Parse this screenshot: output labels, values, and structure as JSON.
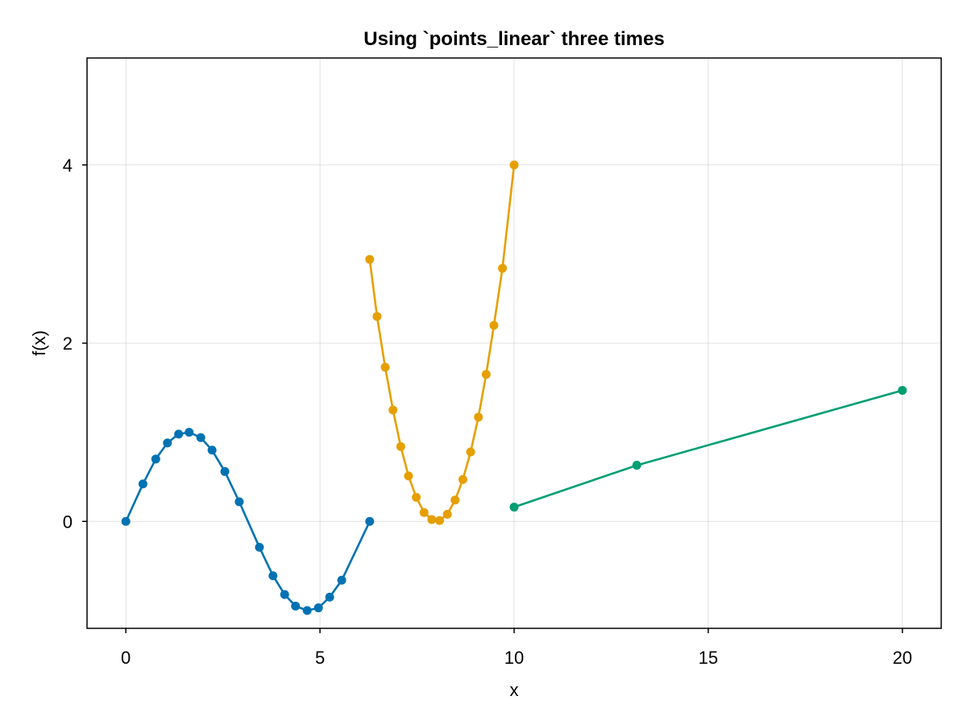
{
  "chart_data": {
    "type": "line",
    "title": "Using `points_linear` three times",
    "xlabel": "x",
    "ylabel": "f(x)",
    "xlim": [
      -1,
      21
    ],
    "ylim": [
      -1.2,
      5.2
    ],
    "xticks": [
      0,
      5,
      10,
      15,
      20
    ],
    "xtick_labels": [
      "0",
      "5",
      "10",
      "15",
      "20"
    ],
    "yticks": [
      0,
      2,
      4
    ],
    "ytick_labels": [
      "0",
      "2",
      "4"
    ],
    "grid": true,
    "markers": true,
    "series": [
      {
        "color": "#0072b2",
        "x": [
          0,
          0.44,
          0.77,
          1.07,
          1.36,
          1.63,
          1.93,
          2.22,
          2.55,
          2.92,
          3.44,
          3.79,
          4.09,
          4.37,
          4.67,
          4.96,
          5.25,
          5.56,
          6.28
        ],
        "y": [
          0,
          0.42,
          0.7,
          0.88,
          0.98,
          1.0,
          0.94,
          0.8,
          0.56,
          0.22,
          -0.29,
          -0.61,
          -0.82,
          -0.95,
          -1.0,
          -0.97,
          -0.85,
          -0.66,
          0
        ]
      },
      {
        "color": "#e69f00",
        "x": [
          6.28,
          6.47,
          6.68,
          6.88,
          7.08,
          7.28,
          7.48,
          7.68,
          7.88,
          8.08,
          8.28,
          8.48,
          8.68,
          8.88,
          9.08,
          9.28,
          9.48,
          9.7,
          10.0
        ],
        "y": [
          2.94,
          2.3,
          1.73,
          1.25,
          0.84,
          0.51,
          0.27,
          0.1,
          0.02,
          0.01,
          0.08,
          0.24,
          0.47,
          0.78,
          1.17,
          1.65,
          2.2,
          2.84,
          4.0
        ]
      },
      {
        "color": "#009e73",
        "x": [
          10,
          13.16,
          20
        ],
        "y": [
          0.16,
          0.63,
          1.47
        ]
      }
    ]
  }
}
